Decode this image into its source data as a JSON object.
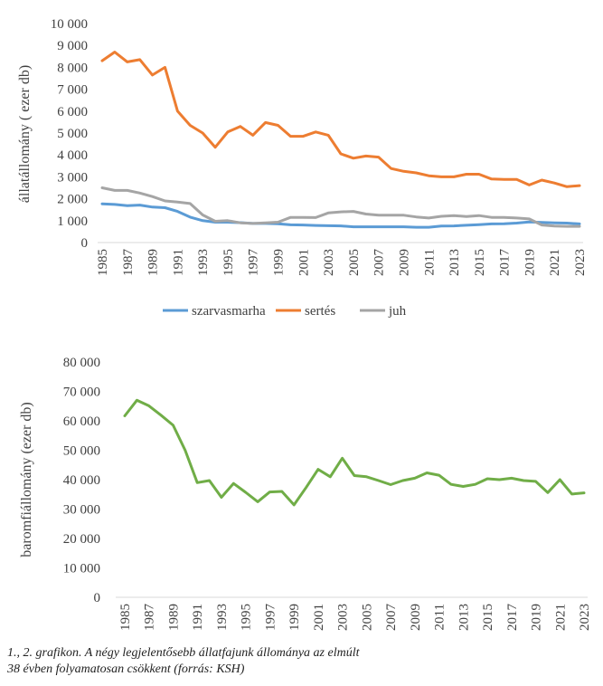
{
  "chart_data": [
    {
      "type": "line",
      "title": "",
      "xlabel": "",
      "ylabel": "állatállomány ( ezer db)",
      "ylim": [
        0,
        10000
      ],
      "ytick_labels": [
        "0",
        "1 000",
        "2 000",
        "3 000",
        "4 000",
        "5 000",
        "6 000",
        "7 000",
        "8 000",
        "9 000",
        "10 000"
      ],
      "ytick_values": [
        0,
        1000,
        2000,
        3000,
        4000,
        5000,
        6000,
        7000,
        8000,
        9000,
        10000
      ],
      "x": [
        1985,
        1986,
        1987,
        1988,
        1989,
        1990,
        1991,
        1992,
        1993,
        1994,
        1995,
        1996,
        1997,
        1998,
        1999,
        2000,
        2001,
        2002,
        2003,
        2004,
        2005,
        2006,
        2007,
        2008,
        2009,
        2010,
        2011,
        2012,
        2013,
        2014,
        2015,
        2016,
        2017,
        2018,
        2019,
        2020,
        2021,
        2022,
        2023
      ],
      "xtick_labels": [
        "1985",
        "1987",
        "1989",
        "1991",
        "1993",
        "1995",
        "1997",
        "1999",
        "2001",
        "2003",
        "2005",
        "2007",
        "2009",
        "2011",
        "2013",
        "2015",
        "2017",
        "2019",
        "2021",
        "2023"
      ],
      "grid": false,
      "legend_position": "bottom",
      "series": [
        {
          "name": "szarvasmarha",
          "color": "#5B9BD5",
          "values": [
            1770,
            1740,
            1680,
            1710,
            1620,
            1590,
            1420,
            1160,
            1000,
            930,
            930,
            910,
            870,
            870,
            860,
            810,
            800,
            780,
            770,
            760,
            720,
            720,
            720,
            720,
            720,
            700,
            700,
            750,
            760,
            790,
            820,
            850,
            860,
            890,
            940,
            920,
            900,
            890,
            850
          ]
        },
        {
          "name": "sertés",
          "color": "#ED7D31",
          "values": [
            8300,
            8700,
            8250,
            8350,
            7650,
            8000,
            6000,
            5350,
            5000,
            4350,
            5050,
            5300,
            4900,
            5480,
            5350,
            4850,
            4850,
            5050,
            4900,
            4050,
            3850,
            3950,
            3900,
            3380,
            3250,
            3180,
            3050,
            3000,
            3000,
            3120,
            3120,
            2900,
            2880,
            2880,
            2630,
            2850,
            2720,
            2550,
            2600
          ]
        },
        {
          "name": "juh",
          "color": "#A5A5A5",
          "values": [
            2500,
            2380,
            2380,
            2260,
            2100,
            1900,
            1850,
            1780,
            1260,
            970,
            1000,
            900,
            870,
            900,
            930,
            1150,
            1150,
            1140,
            1350,
            1400,
            1420,
            1300,
            1250,
            1250,
            1250,
            1170,
            1120,
            1200,
            1230,
            1190,
            1230,
            1150,
            1150,
            1120,
            1080,
            800,
            750,
            740,
            740
          ]
        }
      ]
    },
    {
      "type": "line",
      "title": "",
      "xlabel": "",
      "ylabel": "baromfiállomány (ezer db)",
      "ylim": [
        0,
        80000
      ],
      "ytick_labels": [
        "0",
        "10 000",
        "20 000",
        "30 000",
        "40 000",
        "50 000",
        "60 000",
        "70 000",
        "80 000"
      ],
      "ytick_values": [
        0,
        10000,
        20000,
        30000,
        40000,
        50000,
        60000,
        70000,
        80000
      ],
      "x": [
        1985,
        1986,
        1987,
        1988,
        1989,
        1990,
        1991,
        1992,
        1993,
        1994,
        1995,
        1996,
        1997,
        1998,
        1999,
        2000,
        2001,
        2002,
        2003,
        2004,
        2005,
        2006,
        2007,
        2008,
        2009,
        2010,
        2011,
        2012,
        2013,
        2014,
        2015,
        2016,
        2017,
        2018,
        2019,
        2020,
        2021,
        2022,
        2023
      ],
      "xtick_labels": [
        "1985",
        "1987",
        "1989",
        "1991",
        "1993",
        "1995",
        "1997",
        "1999",
        "2001",
        "2003",
        "2005",
        "2007",
        "2009",
        "2011",
        "2013",
        "2015",
        "2017",
        "2019",
        "2021",
        "2023"
      ],
      "grid": false,
      "series": [
        {
          "color": "#70AD47",
          "values": [
            61700,
            67000,
            65100,
            61900,
            58500,
            50000,
            39000,
            39700,
            34000,
            38700,
            35700,
            32500,
            35800,
            36000,
            31400,
            37300,
            43500,
            41000,
            47300,
            41400,
            41000,
            39700,
            38300,
            39700,
            40500,
            42300,
            41500,
            38400,
            37700,
            38400,
            40300,
            40000,
            40500,
            39700,
            39400,
            35600,
            40000,
            35100,
            35500
          ]
        }
      ]
    }
  ],
  "caption": {
    "line1": "1., 2. grafikon. A négy legjelentősebb állatfajunk állománya az elmúlt",
    "line2": "38 évben folyamatosan csökkent (forrás: KSH)"
  }
}
